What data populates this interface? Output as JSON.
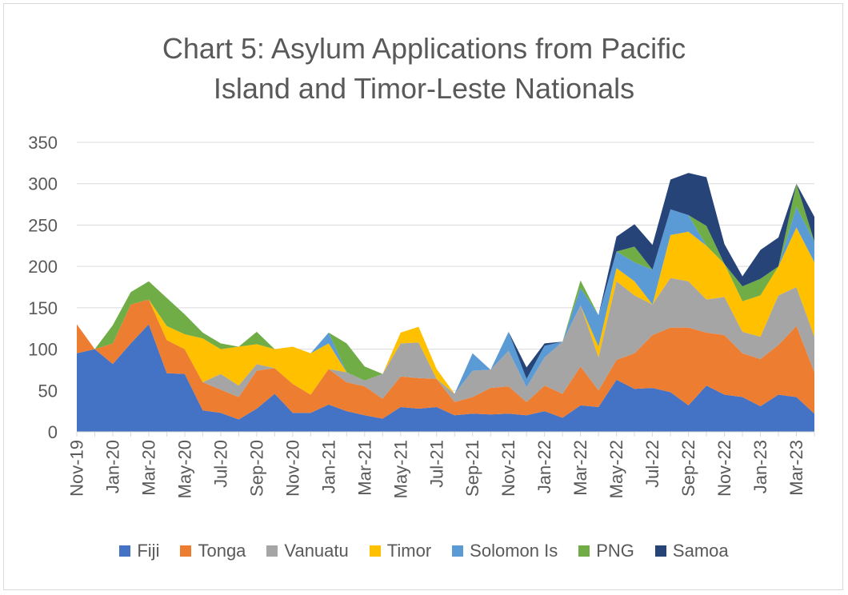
{
  "chart_data": {
    "type": "area",
    "stacked": true,
    "title_lines": [
      "Chart 5: Asylum Applications from Pacific",
      "Island and Timor-Leste Nationals"
    ],
    "ylim": [
      0,
      350
    ],
    "yticks": [
      0,
      50,
      100,
      150,
      200,
      250,
      300,
      350
    ],
    "grid": true,
    "legend_position": "bottom",
    "x": [
      "Nov-19",
      "Dec-19",
      "Jan-20",
      "Feb-20",
      "Mar-20",
      "Apr-20",
      "May-20",
      "Jun-20",
      "Jul-20",
      "Aug-20",
      "Sep-20",
      "Oct-20",
      "Nov-20",
      "Dec-20",
      "Jan-21",
      "Feb-21",
      "Mar-21",
      "Apr-21",
      "May-21",
      "Jun-21",
      "Jul-21",
      "Aug-21",
      "Sep-21",
      "Oct-21",
      "Nov-21",
      "Dec-21",
      "Jan-22",
      "Feb-22",
      "Mar-22",
      "Apr-22",
      "May-22",
      "Jun-22",
      "Jul-22",
      "Aug-22",
      "Sep-22",
      "Oct-22",
      "Nov-22",
      "Dec-22",
      "Jan-23",
      "Feb-23",
      "Mar-23",
      "Apr-23"
    ],
    "xtick_labels": [
      "Nov-19",
      "Jan-20",
      "Mar-20",
      "May-20",
      "Jul-20",
      "Sep-20",
      "Nov-20",
      "Jan-21",
      "Mar-21",
      "May-21",
      "Jul-21",
      "Sep-21",
      "Nov-21",
      "Jan-22",
      "Mar-22",
      "May-22",
      "Jul-22",
      "Sep-22",
      "Nov-22",
      "Jan-23",
      "Mar-23"
    ],
    "series": [
      {
        "name": "Fiji",
        "color": "#4472C4",
        "values": [
          95,
          100,
          82,
          107,
          130,
          71,
          70,
          26,
          23,
          15,
          28,
          46,
          23,
          23,
          33,
          25,
          20,
          16,
          30,
          28,
          30,
          20,
          22,
          21,
          22,
          20,
          25,
          17,
          32,
          30,
          63,
          52,
          53,
          48,
          32,
          56,
          45,
          42,
          31,
          45,
          42,
          22
        ]
      },
      {
        "name": "Tonga",
        "color": "#ED7D31",
        "values": [
          35,
          0,
          25,
          47,
          30,
          40,
          30,
          34,
          28,
          27,
          46,
          31,
          35,
          22,
          43,
          35,
          35,
          24,
          37,
          37,
          34,
          16,
          20,
          32,
          33,
          16,
          31,
          29,
          47,
          20,
          24,
          43,
          64,
          78,
          94,
          64,
          72,
          53,
          57,
          60,
          86,
          50
        ]
      },
      {
        "name": "Vanuatu",
        "color": "#A5A5A5",
        "values": [
          0,
          0,
          0,
          0,
          0,
          0,
          0,
          0,
          19,
          14,
          8,
          0,
          0,
          0,
          0,
          12,
          7,
          30,
          40,
          43,
          0,
          10,
          32,
          22,
          43,
          18,
          34,
          63,
          74,
          40,
          95,
          70,
          37,
          60,
          56,
          40,
          46,
          26,
          27,
          60,
          47,
          43
        ]
      },
      {
        "name": "Timor",
        "color": "#FFC000",
        "values": [
          0,
          0,
          0,
          0,
          0,
          17,
          18,
          53,
          30,
          47,
          24,
          23,
          45,
          50,
          31,
          0,
          0,
          0,
          13,
          19,
          12,
          0,
          0,
          0,
          0,
          0,
          0,
          0,
          0,
          13,
          16,
          17,
          0,
          52,
          60,
          65,
          40,
          37,
          50,
          35,
          72,
          90
        ]
      },
      {
        "name": "Solomon Is",
        "color": "#5B9BD5",
        "values": [
          0,
          0,
          0,
          0,
          0,
          0,
          0,
          0,
          0,
          0,
          0,
          0,
          0,
          0,
          13,
          0,
          0,
          0,
          0,
          0,
          0,
          0,
          21,
          0,
          23,
          10,
          14,
          0,
          21,
          38,
          20,
          23,
          42,
          31,
          20,
          0,
          0,
          0,
          0,
          0,
          25,
          25
        ]
      },
      {
        "name": "PNG",
        "color": "#70AD47",
        "values": [
          0,
          0,
          22,
          15,
          22,
          34,
          24,
          7,
          7,
          0,
          15,
          0,
          0,
          0,
          0,
          35,
          17,
          0,
          0,
          0,
          0,
          0,
          0,
          0,
          0,
          0,
          0,
          0,
          9,
          0,
          0,
          19,
          0,
          0,
          0,
          24,
          0,
          18,
          20,
          0,
          28,
          0
        ]
      },
      {
        "name": "Samoa",
        "color": "#264478",
        "values": [
          0,
          0,
          0,
          0,
          0,
          0,
          0,
          0,
          0,
          0,
          0,
          0,
          0,
          0,
          0,
          0,
          0,
          0,
          0,
          0,
          0,
          0,
          0,
          0,
          0,
          14,
          3,
          0,
          0,
          0,
          18,
          27,
          30,
          36,
          51,
          59,
          24,
          12,
          35,
          35,
          0,
          30
        ]
      }
    ]
  }
}
